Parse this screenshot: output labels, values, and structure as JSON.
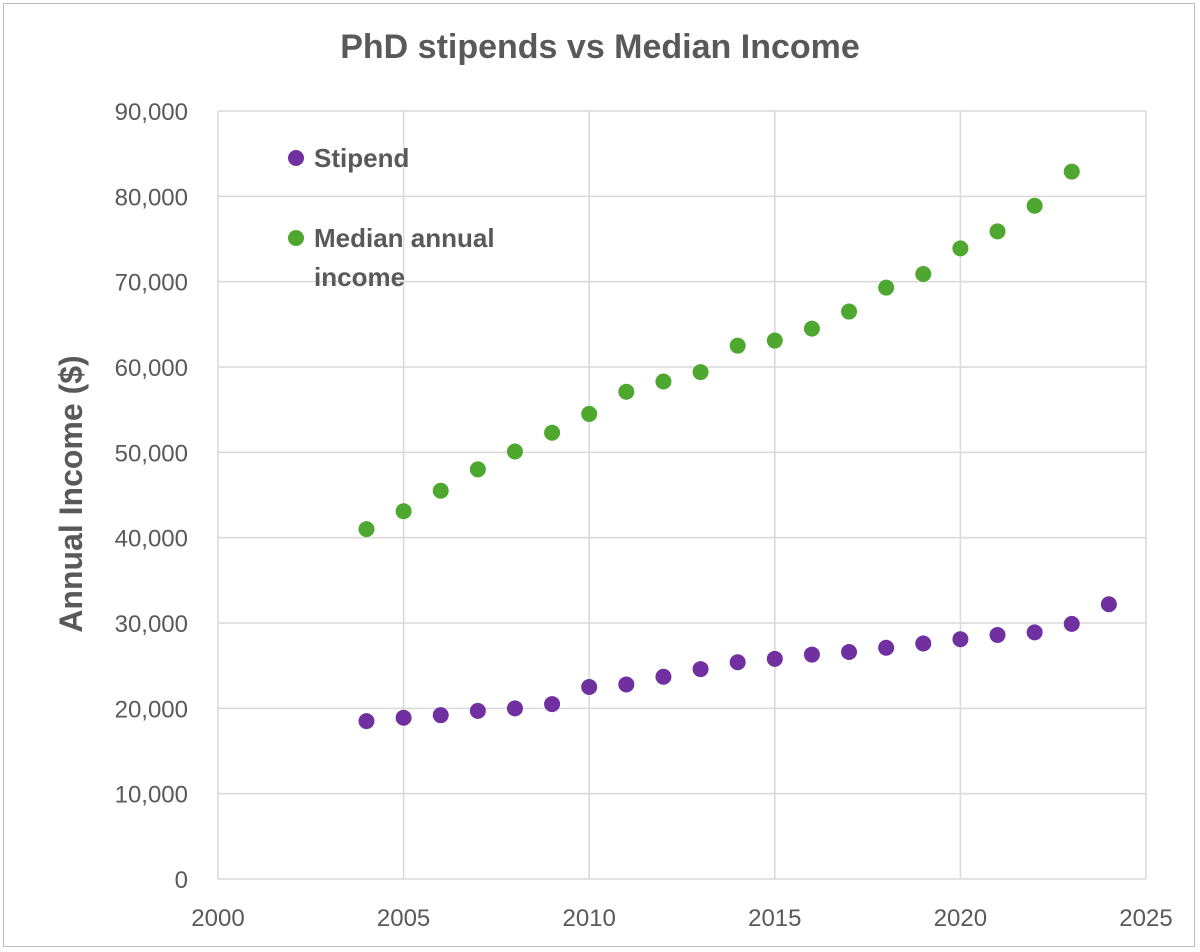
{
  "chart_data": {
    "type": "scatter",
    "title": "PhD stipends vs Median Income",
    "xlabel": "",
    "ylabel": "Annual Income ($)",
    "xlim": [
      2000,
      2025
    ],
    "ylim": [
      0,
      90000
    ],
    "x_ticks": [
      "2000",
      "2005",
      "2010",
      "2015",
      "2020",
      "2025"
    ],
    "y_ticks": [
      "0",
      "10,000",
      "20,000",
      "30,000",
      "40,000",
      "50,000",
      "60,000",
      "70,000",
      "80,000",
      "90,000"
    ],
    "grid": true,
    "legend_position": "top-left",
    "series": [
      {
        "name": "Stipend",
        "legend_lines": [
          "Stipend"
        ],
        "color": "#7030a0",
        "x": [
          2004,
          2005,
          2006,
          2007,
          2008,
          2009,
          2010,
          2011,
          2012,
          2013,
          2014,
          2015,
          2016,
          2017,
          2018,
          2019,
          2020,
          2021,
          2022,
          2023,
          2024
        ],
        "y": [
          18500,
          18900,
          19200,
          19700,
          20000,
          20500,
          22500,
          22800,
          23700,
          24600,
          25400,
          25800,
          26300,
          26600,
          27100,
          27600,
          28100,
          28600,
          28900,
          29900,
          32200
        ]
      },
      {
        "name": "Median annual income",
        "legend_lines": [
          "Median annual",
          "income"
        ],
        "color": "#4ea72e",
        "x": [
          2004,
          2005,
          2006,
          2007,
          2008,
          2009,
          2010,
          2011,
          2012,
          2013,
          2014,
          2015,
          2016,
          2017,
          2018,
          2019,
          2020,
          2021,
          2022,
          2023
        ],
        "y": [
          41000,
          43100,
          45500,
          48000,
          50100,
          52300,
          54500,
          57100,
          58300,
          59400,
          62500,
          63100,
          64500,
          66500,
          69300,
          70900,
          73900,
          75900,
          78900,
          82900
        ]
      }
    ]
  }
}
